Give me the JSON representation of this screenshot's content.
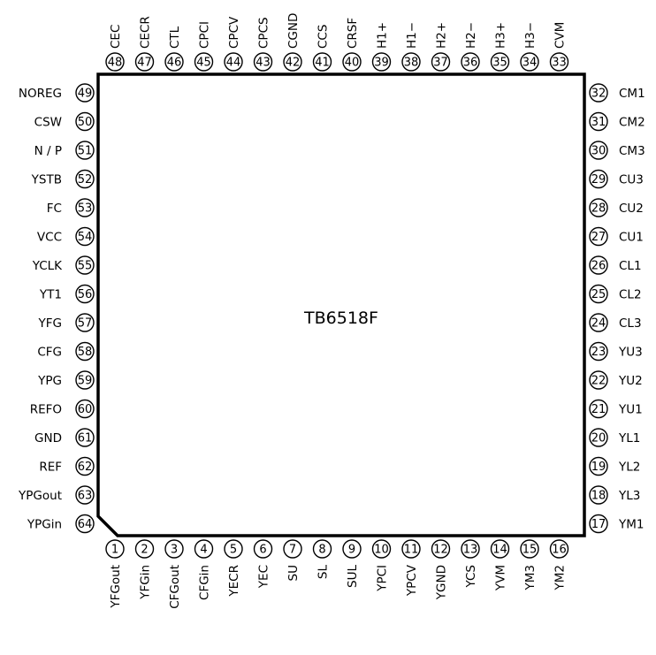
{
  "chip": {
    "part_number": "TB6518F"
  },
  "pins_top": [
    {
      "num": "48",
      "name": "CEC"
    },
    {
      "num": "47",
      "name": "CECR"
    },
    {
      "num": "46",
      "name": "CTL"
    },
    {
      "num": "45",
      "name": "CPCI"
    },
    {
      "num": "44",
      "name": "CPCV"
    },
    {
      "num": "43",
      "name": "CPCS"
    },
    {
      "num": "42",
      "name": "CGND"
    },
    {
      "num": "41",
      "name": "CCS"
    },
    {
      "num": "40",
      "name": "CRSF"
    },
    {
      "num": "39",
      "name": "H1+"
    },
    {
      "num": "38",
      "name": "H1−"
    },
    {
      "num": "37",
      "name": "H2+"
    },
    {
      "num": "36",
      "name": "H2−"
    },
    {
      "num": "35",
      "name": "H3+"
    },
    {
      "num": "34",
      "name": "H3−"
    },
    {
      "num": "33",
      "name": "CVM"
    }
  ],
  "pins_left": [
    {
      "num": "49",
      "name": "NOREG"
    },
    {
      "num": "50",
      "name": "CSW"
    },
    {
      "num": "51",
      "name": "N / P"
    },
    {
      "num": "52",
      "name": "YSTB"
    },
    {
      "num": "53",
      "name": "FC"
    },
    {
      "num": "54",
      "name": "VCC"
    },
    {
      "num": "55",
      "name": "YCLK"
    },
    {
      "num": "56",
      "name": "YT1"
    },
    {
      "num": "57",
      "name": "YFG"
    },
    {
      "num": "58",
      "name": "CFG"
    },
    {
      "num": "59",
      "name": "YPG"
    },
    {
      "num": "60",
      "name": "REFO"
    },
    {
      "num": "61",
      "name": "GND"
    },
    {
      "num": "62",
      "name": "REF"
    },
    {
      "num": "63",
      "name": "YPGout"
    },
    {
      "num": "64",
      "name": "YPGin"
    }
  ],
  "pins_right": [
    {
      "num": "32",
      "name": "CM1"
    },
    {
      "num": "31",
      "name": "CM2"
    },
    {
      "num": "30",
      "name": "CM3"
    },
    {
      "num": "29",
      "name": "CU3"
    },
    {
      "num": "28",
      "name": "CU2"
    },
    {
      "num": "27",
      "name": "CU1"
    },
    {
      "num": "26",
      "name": "CL1"
    },
    {
      "num": "25",
      "name": "CL2"
    },
    {
      "num": "24",
      "name": "CL3"
    },
    {
      "num": "23",
      "name": "YU3"
    },
    {
      "num": "22",
      "name": "YU2"
    },
    {
      "num": "21",
      "name": "YU1"
    },
    {
      "num": "20",
      "name": "YL1"
    },
    {
      "num": "19",
      "name": "YL2"
    },
    {
      "num": "18",
      "name": "YL3"
    },
    {
      "num": "17",
      "name": "YM1"
    }
  ],
  "pins_bottom": [
    {
      "num": "1",
      "name": "YFGout"
    },
    {
      "num": "2",
      "name": "YFGin"
    },
    {
      "num": "3",
      "name": "CFGout"
    },
    {
      "num": "4",
      "name": "CFGin"
    },
    {
      "num": "5",
      "name": "YECR"
    },
    {
      "num": "6",
      "name": "YEC"
    },
    {
      "num": "7",
      "name": "SU"
    },
    {
      "num": "8",
      "name": "SL"
    },
    {
      "num": "9",
      "name": "SUL"
    },
    {
      "num": "10",
      "name": "YPCI"
    },
    {
      "num": "11",
      "name": "YPCV"
    },
    {
      "num": "12",
      "name": "YGND"
    },
    {
      "num": "13",
      "name": "YCS"
    },
    {
      "num": "14",
      "name": "YVM"
    },
    {
      "num": "15",
      "name": "YM3"
    },
    {
      "num": "16",
      "name": "YM2"
    }
  ]
}
